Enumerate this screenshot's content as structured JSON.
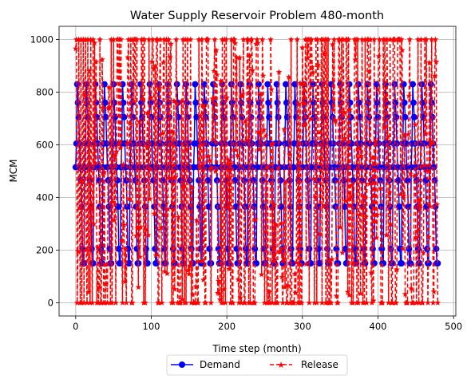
{
  "chart_data": {
    "type": "line",
    "title": "Water Supply Reservoir Problem 480-month",
    "xlabel": "Time step (month)",
    "ylabel": "MCM",
    "xlim": [
      -22,
      503
    ],
    "ylim": [
      -50,
      1050
    ],
    "xticks": [
      "0",
      "100",
      "200",
      "300",
      "400",
      "500"
    ],
    "yticks": [
      "0",
      "200",
      "400",
      "600",
      "800",
      "1000"
    ],
    "grid": true,
    "legend_position": "bottom-center",
    "demand_cycle": [
      515,
      605,
      830,
      760,
      705,
      605,
      515,
      465,
      365,
      205,
      150,
      150
    ],
    "release_sample": [
      965,
      1000,
      0,
      195,
      1000,
      360,
      0,
      1000,
      0,
      460,
      1000,
      0,
      790,
      1000,
      200,
      0,
      1000,
      40,
      880,
      0,
      1000,
      360,
      0,
      1000
    ],
    "series": [
      {
        "name": "Demand",
        "color": "#0000ff",
        "style": "solid",
        "marker": "circle"
      },
      {
        "name": "Release",
        "color": "#ff0000",
        "style": "dashed",
        "marker": "star"
      }
    ]
  }
}
